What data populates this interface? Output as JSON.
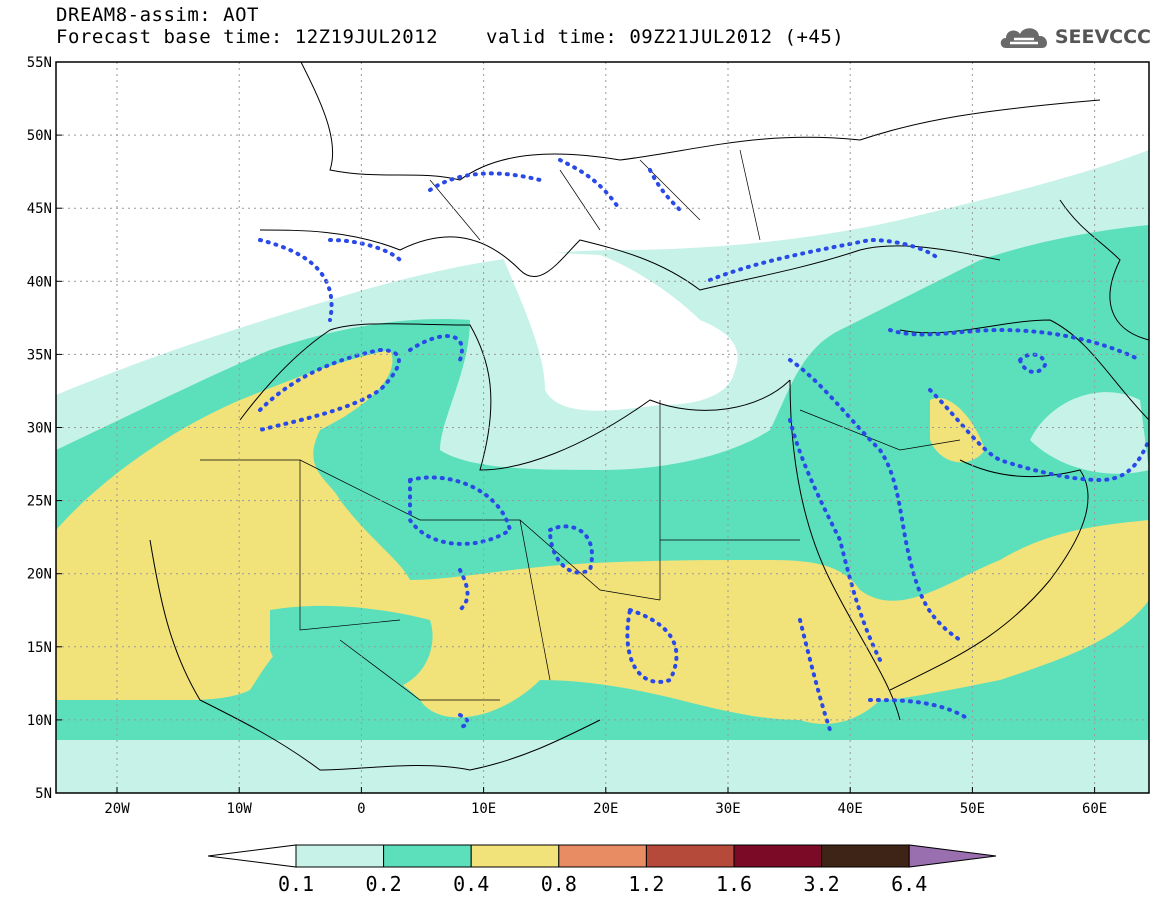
{
  "header": {
    "model_line": "DREAM8-assim: AOT",
    "base_time_line": "Forecast base time: 12Z19JUL2012",
    "valid_time_line": "valid time: 09Z21JUL2012 (+45)"
  },
  "logo": {
    "text": "SEEVCCC",
    "icon": "cloud-icon"
  },
  "axes": {
    "lon_ticks": [
      "20W",
      "10W",
      "0",
      "10E",
      "20E",
      "30E",
      "40E",
      "50E",
      "60E"
    ],
    "lat_ticks": [
      "55N",
      "50N",
      "45N",
      "40N",
      "35N",
      "30N",
      "25N",
      "20N",
      "15N",
      "10N",
      "5N"
    ]
  },
  "colorbar": {
    "labels": [
      "0.1",
      "0.2",
      "0.4",
      "0.8",
      "1.2",
      "1.6",
      "3.2",
      "6.4"
    ],
    "colors": [
      "#c6f2e8",
      "#5ce0bc",
      "#f2e27a",
      "#e88c64",
      "#b54a3a",
      "#7a0a26",
      "#3e2416",
      "#9a6fb0"
    ]
  },
  "map_colors": {
    "light": "#c6f2e8",
    "medium": "#5ce0bc",
    "high": "#f2e27a",
    "dots": "#2a4ae8"
  }
}
